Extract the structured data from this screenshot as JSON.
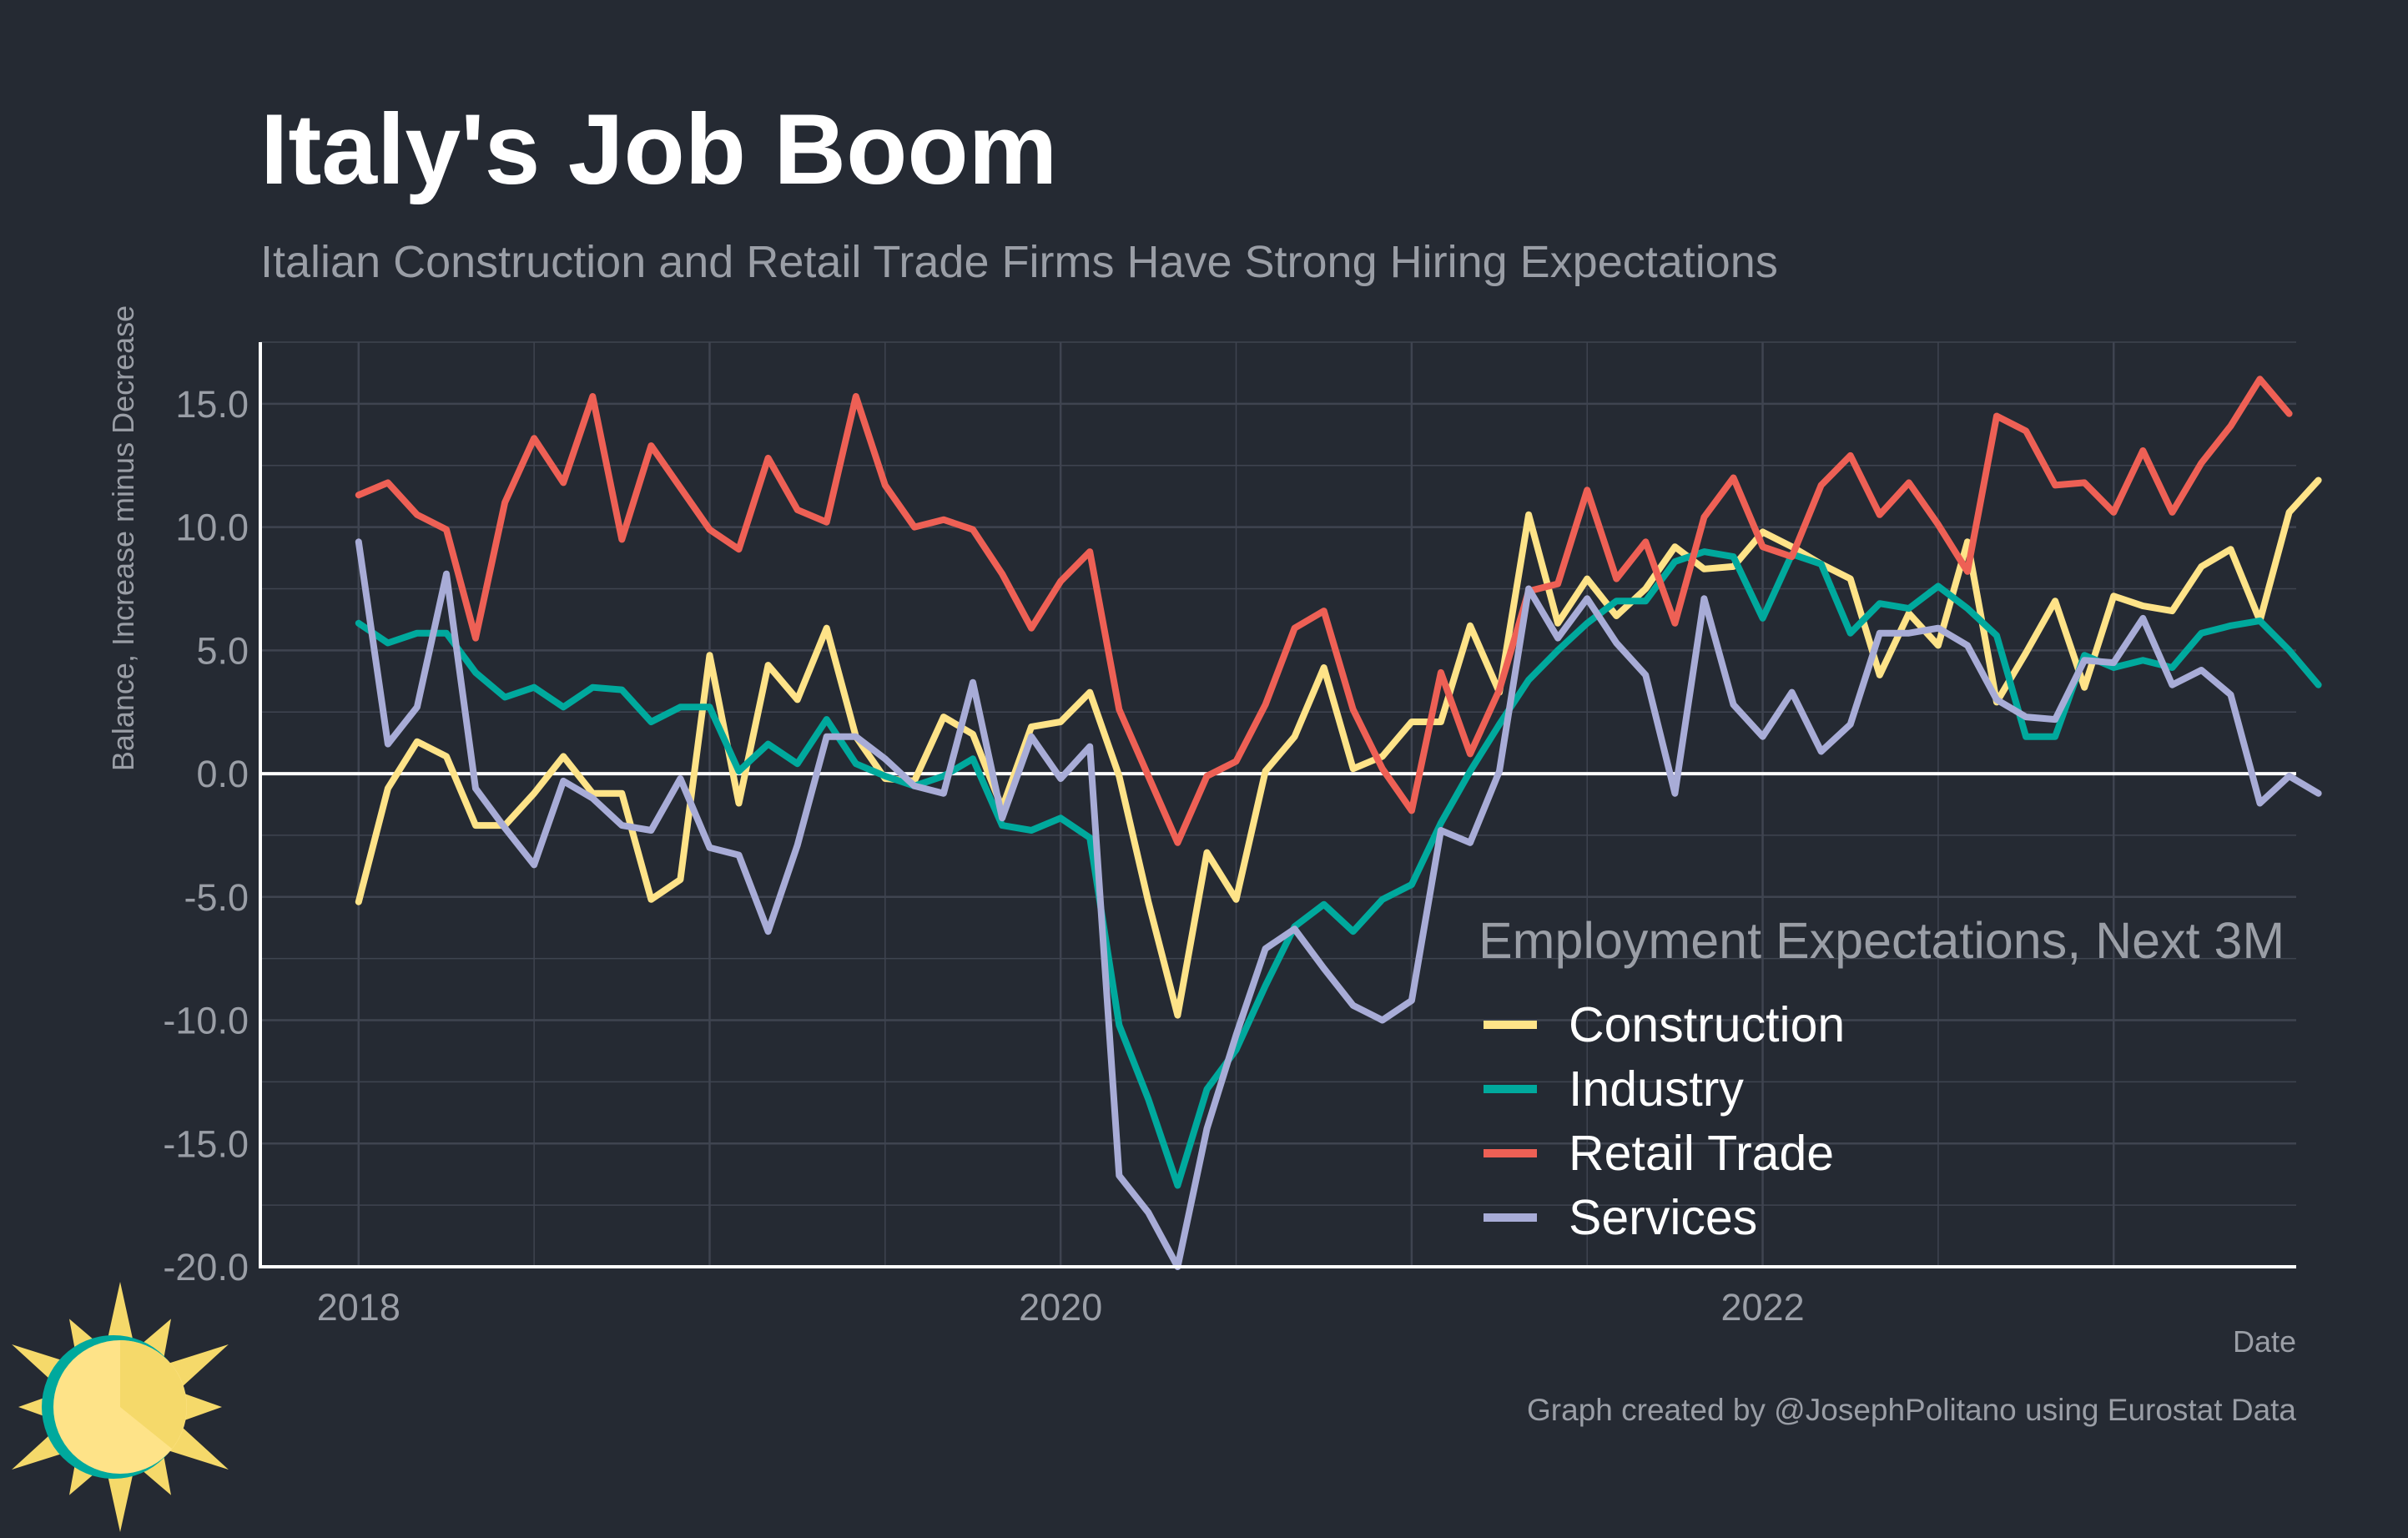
{
  "colors": {
    "background": "#252a33",
    "grid": "#3f4450",
    "zero_line": "#ffffff",
    "construction": "#fee388",
    "industry": "#00a99d",
    "retail": "#ee6055",
    "services": "#a8acd7"
  },
  "header": {
    "title": "Italy's Job Boom",
    "subtitle": "Italian Construction and Retail Trade Firms Have Strong Hiring Expectations"
  },
  "footer": {
    "caption": "Graph created by @JosephPolitano using Eurostat Data"
  },
  "logo": {
    "icon": "sun-logo-icon"
  },
  "chart_data": {
    "type": "line",
    "title": "Italy's Job Boom",
    "subtitle": "Italian Construction and Retail Trade Firms Have Strong Hiring Expectations",
    "xlabel": "Date",
    "ylabel": "Balance, Increase minus Decrease",
    "xlim": [
      2017.72,
      2023.52
    ],
    "ylim": [
      -20,
      17.5
    ],
    "x_ticks": [
      2018,
      2020,
      2022
    ],
    "x_tick_labels": [
      "2018",
      "2020",
      "2022"
    ],
    "y_ticks": [
      15,
      10,
      5,
      0,
      -5,
      -10,
      -15,
      -20
    ],
    "y_tick_labels": [
      "15.0",
      "10.0",
      "5.0",
      "0.0",
      "-5.0",
      "-10.0",
      "-15.0",
      "-20.0"
    ],
    "grid": true,
    "legend_title": "Employment Expectations, Next 3M",
    "legend_position": "bottom-right",
    "x_start": "2018-01",
    "x_step": "monthly",
    "series": [
      {
        "name": "Construction",
        "color": "#fee388",
        "values": [
          -5.2,
          -0.6,
          1.3,
          0.7,
          -2.1,
          -2.1,
          -0.8,
          0.7,
          -0.8,
          -0.8,
          -5.1,
          -4.3,
          4.8,
          -1.2,
          4.4,
          3.0,
          5.9,
          1.5,
          -0.2,
          -0.3,
          2.3,
          1.6,
          -1.4,
          1.9,
          2.1,
          3.3,
          -0.1,
          -5.2,
          -9.8,
          -3.2,
          -5.1,
          0.1,
          1.5,
          4.3,
          0.2,
          0.7,
          2.1,
          2.1,
          6.0,
          3.3,
          10.5,
          6.1,
          7.9,
          6.4,
          7.5,
          9.2,
          8.3,
          8.4,
          9.8,
          9.2,
          8.5,
          7.9,
          4.0,
          6.5,
          5.2,
          9.4,
          2.9,
          4.9,
          7.0,
          3.5,
          7.2,
          6.8,
          6.6,
          8.4,
          9.1,
          6.2,
          10.6,
          11.9
        ]
      },
      {
        "name": "Industry",
        "color": "#00a99d",
        "values": [
          6.1,
          5.3,
          5.7,
          5.7,
          4.1,
          3.1,
          3.5,
          2.7,
          3.5,
          3.4,
          2.1,
          2.7,
          2.7,
          0.1,
          1.2,
          0.4,
          2.2,
          0.4,
          -0.1,
          -0.5,
          -0.1,
          0.6,
          -2.1,
          -2.3,
          -1.8,
          -2.6,
          -10.2,
          -13.2,
          -16.7,
          -12.8,
          -11.2,
          -8.6,
          -6.2,
          -5.3,
          -6.4,
          -5.1,
          -4.5,
          -2.0,
          0.1,
          2.0,
          3.8,
          5.0,
          6.1,
          7.0,
          7.0,
          8.6,
          9.0,
          8.8,
          6.3,
          8.9,
          8.5,
          5.7,
          6.9,
          6.7,
          7.6,
          6.7,
          5.6,
          1.5,
          1.5,
          4.8,
          4.3,
          4.6,
          4.3,
          5.7,
          6.0,
          6.2,
          5.0,
          3.6
        ]
      },
      {
        "name": "Retail Trade",
        "color": "#ee6055",
        "values": [
          11.3,
          11.8,
          10.5,
          9.9,
          5.5,
          11.0,
          13.6,
          11.8,
          15.3,
          9.5,
          13.3,
          11.6,
          9.9,
          9.1,
          12.8,
          10.7,
          10.2,
          15.3,
          11.7,
          10.0,
          10.3,
          9.9,
          8.1,
          5.9,
          7.8,
          9.0,
          2.6,
          -0.1,
          -2.8,
          -0.1,
          0.5,
          2.8,
          5.9,
          6.6,
          2.6,
          0.2,
          -1.5,
          4.1,
          0.8,
          3.4,
          7.4,
          7.7,
          11.5,
          7.9,
          9.4,
          6.1,
          10.4,
          12.0,
          9.2,
          8.8,
          11.7,
          12.9,
          10.5,
          11.8,
          10.1,
          8.2,
          14.5,
          13.9,
          11.7,
          11.8,
          10.6,
          13.1,
          10.6,
          12.6,
          14.1,
          16.0,
          14.6
        ]
      },
      {
        "name": "Services",
        "color": "#a8acd7",
        "values": [
          9.4,
          1.2,
          2.7,
          8.1,
          -0.6,
          -2.2,
          -3.7,
          -0.3,
          -1.0,
          -2.1,
          -2.3,
          -0.2,
          -3.0,
          -3.3,
          -6.4,
          -2.9,
          1.5,
          1.5,
          0.6,
          -0.5,
          -0.8,
          3.7,
          -1.8,
          1.5,
          -0.2,
          1.1,
          -16.3,
          -17.8,
          -20.0,
          -14.4,
          -10.6,
          -7.1,
          -6.3,
          -7.9,
          -9.4,
          -10.0,
          -9.2,
          -2.3,
          -2.8,
          0.1,
          7.5,
          5.5,
          7.1,
          5.3,
          4.0,
          -0.8,
          7.1,
          2.8,
          1.5,
          3.3,
          0.9,
          2.0,
          5.7,
          5.7,
          5.9,
          5.2,
          3.0,
          2.3,
          2.2,
          4.6,
          4.5,
          6.3,
          3.6,
          4.2,
          3.2,
          -1.2,
          -0.1,
          -0.8
        ]
      }
    ]
  }
}
